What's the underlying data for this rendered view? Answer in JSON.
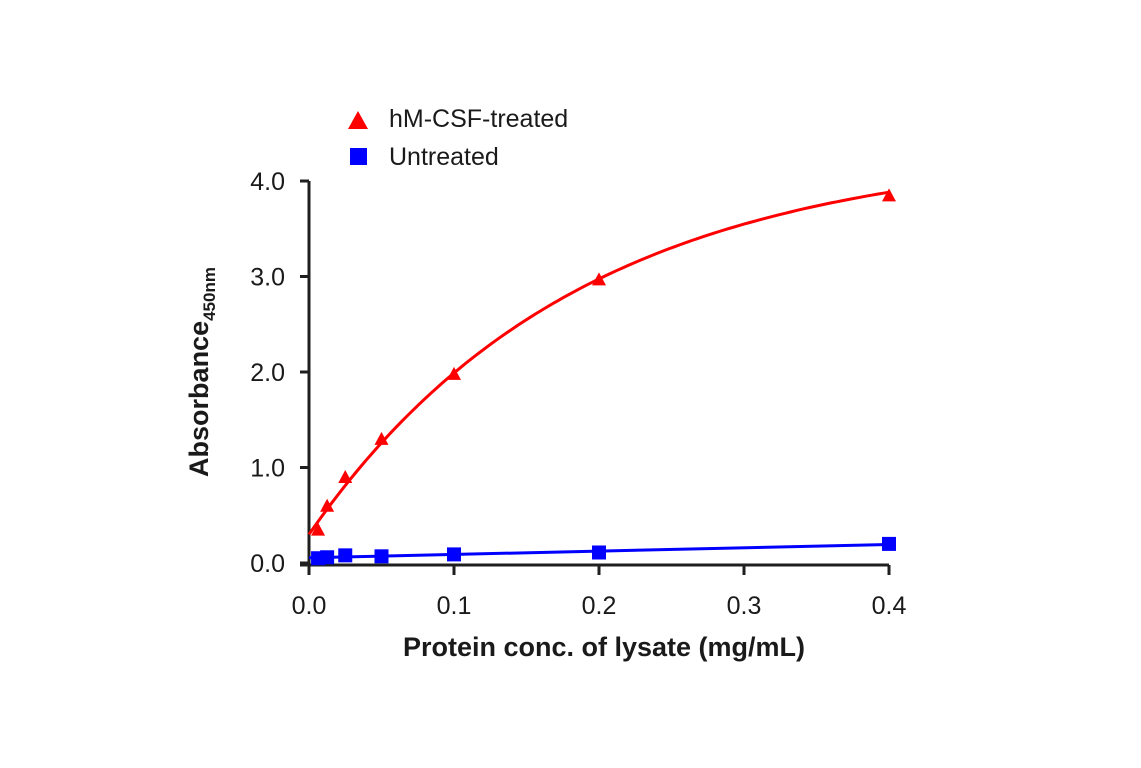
{
  "chart_data": {
    "type": "line",
    "title": "",
    "xlabel": "Protein conc. of lysate (mg/mL)",
    "ylabel": "Absorbance",
    "ylabel_subscript": "450nm",
    "xlim": [
      0.0,
      0.4
    ],
    "ylim": [
      0.0,
      4.0
    ],
    "xticks": [
      0.0,
      0.1,
      0.2,
      0.3,
      0.4
    ],
    "xtick_labels": [
      "0.0",
      "0.1",
      "0.2",
      "0.3",
      "0.4"
    ],
    "yticks": [
      0.0,
      1.0,
      2.0,
      3.0,
      4.0
    ],
    "ytick_labels": [
      "0.0",
      "1.0",
      "2.0",
      "3.0",
      "4.0"
    ],
    "grid": false,
    "legend_position": "top-left",
    "x": [
      0.00625,
      0.0125,
      0.025,
      0.05,
      0.1,
      0.2,
      0.4
    ],
    "series": [
      {
        "name": "hM-CSF-treated",
        "marker": "triangle",
        "color": "#ff0000",
        "values": [
          0.35,
          0.6,
          0.9,
          1.3,
          1.98,
          2.97,
          3.85
        ],
        "fit": "curve"
      },
      {
        "name": "Untreated",
        "marker": "square",
        "color": "#0000ff",
        "values": [
          0.05,
          0.06,
          0.08,
          0.07,
          0.09,
          0.11,
          0.2
        ],
        "fit": "linear"
      }
    ]
  }
}
